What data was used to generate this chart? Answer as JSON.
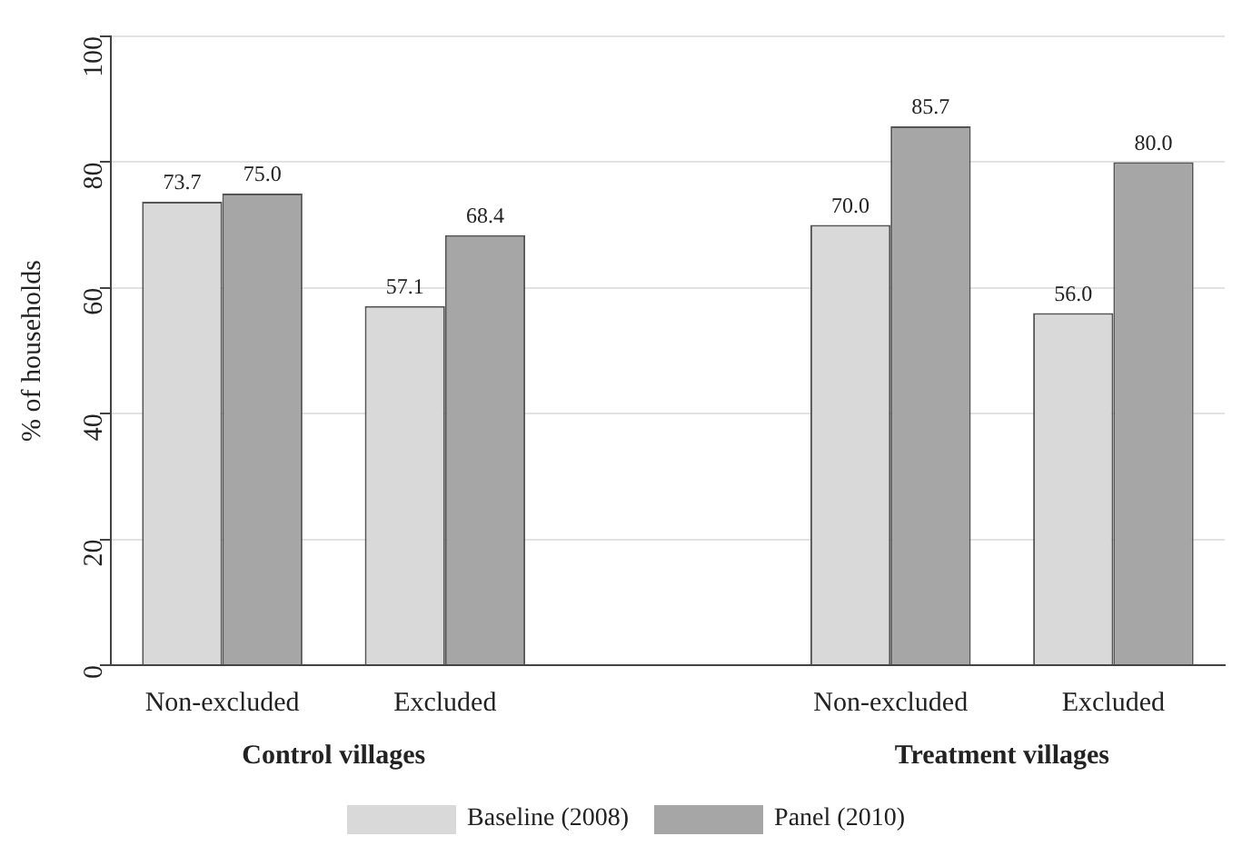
{
  "chart_data": {
    "type": "bar",
    "categories": [
      "Non-excluded",
      "Excluded",
      null,
      "Non-excluded",
      "Excluded"
    ],
    "series": [
      {
        "name": "Baseline (2008)",
        "color": "#d9d9d9",
        "values": [
          73.7,
          57.1,
          null,
          70.0,
          56.0
        ],
        "value_labels": [
          "73.7",
          "57.1",
          null,
          "70.0",
          "56.0"
        ]
      },
      {
        "name": "Panel (2010)",
        "color": "#a6a6a6",
        "values": [
          75.0,
          68.4,
          null,
          85.7,
          80.0
        ],
        "value_labels": [
          "75.0",
          "68.4",
          null,
          "85.7",
          "80.0"
        ]
      }
    ],
    "ylabel": "% of households",
    "ylim": [
      0,
      100
    ],
    "yticks": [
      0,
      20,
      40,
      60,
      80,
      100
    ],
    "grid": "y",
    "legend": "bottom",
    "annotations": [
      "Control villages",
      "Treatment villages"
    ]
  }
}
